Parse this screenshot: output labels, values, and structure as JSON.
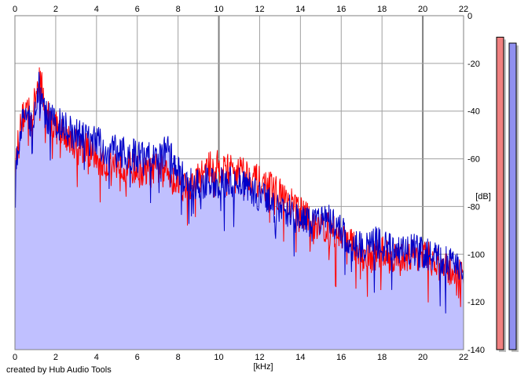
{
  "credit": "created by Hub Audio Tools",
  "colors": {
    "background": "#ffffff",
    "grid": "#a0a0a0",
    "grid_major": "#808080",
    "area_fill": "#c0c0ff",
    "channel_left": "#ff0000",
    "channel_right": "#0000c8",
    "meter_left": "#f08080",
    "meter_right": "#9090f0",
    "meter_shadow": "#c0c0c0"
  },
  "meters": [
    {
      "name": "left",
      "level_db": -9
    },
    {
      "name": "right",
      "level_db": -11.5
    }
  ],
  "chart_data": {
    "type": "line",
    "xlabel": "[kHz]",
    "ylabel": "[dB]",
    "xlim": [
      0,
      22
    ],
    "ylim": [
      -140,
      0
    ],
    "x_ticks": [
      "0",
      "2",
      "4",
      "6",
      "8",
      "10",
      "12",
      "14",
      "16",
      "18",
      "20",
      "22"
    ],
    "y_ticks": [
      "0",
      "-20",
      "-40",
      "-60",
      "-80",
      "-100",
      "-120",
      "-140"
    ],
    "grid": true,
    "x_scale": "linear",
    "series": [
      {
        "channel": "red",
        "x": [
          0,
          0.2,
          0.4,
          0.6,
          0.8,
          1,
          1.2,
          1.5,
          2,
          2.5,
          3,
          3.5,
          4,
          4.5,
          5,
          5.5,
          6,
          6.5,
          7,
          7.5,
          8,
          8.5,
          9,
          9.5,
          10,
          10.5,
          11,
          11.5,
          12,
          12.5,
          13,
          13.5,
          14,
          14.5,
          15,
          15.5,
          16,
          16.5,
          17,
          17.5,
          18,
          18.5,
          19,
          19.5,
          20,
          20.5,
          21,
          21.5,
          22
        ],
        "values": [
          -68,
          -50,
          -42,
          -38,
          -44,
          -35,
          -24,
          -40,
          -47,
          -50,
          -54,
          -56,
          -60,
          -63,
          -62,
          -63,
          -65,
          -66,
          -64,
          -65,
          -70,
          -72,
          -68,
          -64,
          -63,
          -65,
          -64,
          -67,
          -70,
          -72,
          -75,
          -79,
          -82,
          -86,
          -88,
          -90,
          -92,
          -96,
          -100,
          -101,
          -99,
          -102,
          -101,
          -100,
          -100,
          -103,
          -106,
          -107,
          -110
        ]
      },
      {
        "channel": "blue",
        "x": [
          0,
          0.2,
          0.4,
          0.6,
          0.8,
          1,
          1.2,
          1.5,
          2,
          2.5,
          3,
          3.5,
          4,
          4.5,
          5,
          5.5,
          6,
          6.5,
          7,
          7.5,
          8,
          8.5,
          9,
          9.5,
          10,
          10.5,
          11,
          11.5,
          12,
          12.5,
          13,
          13.5,
          14,
          14.5,
          15,
          15.5,
          16,
          16.5,
          17,
          17.5,
          18,
          18.5,
          19,
          19.5,
          20,
          20.5,
          21,
          21.5,
          22
        ],
        "values": [
          -70,
          -52,
          -44,
          -40,
          -46,
          -38,
          -28,
          -42,
          -45,
          -47,
          -50,
          -52,
          -53,
          -56,
          -57,
          -58,
          -59,
          -60,
          -58,
          -57,
          -66,
          -70,
          -70,
          -69,
          -70,
          -69,
          -70,
          -72,
          -76,
          -79,
          -81,
          -82,
          -86,
          -88,
          -87,
          -86,
          -91,
          -94,
          -97,
          -95,
          -96,
          -97,
          -97,
          -98,
          -99,
          -101,
          -103,
          -104,
          -108
        ]
      }
    ]
  }
}
